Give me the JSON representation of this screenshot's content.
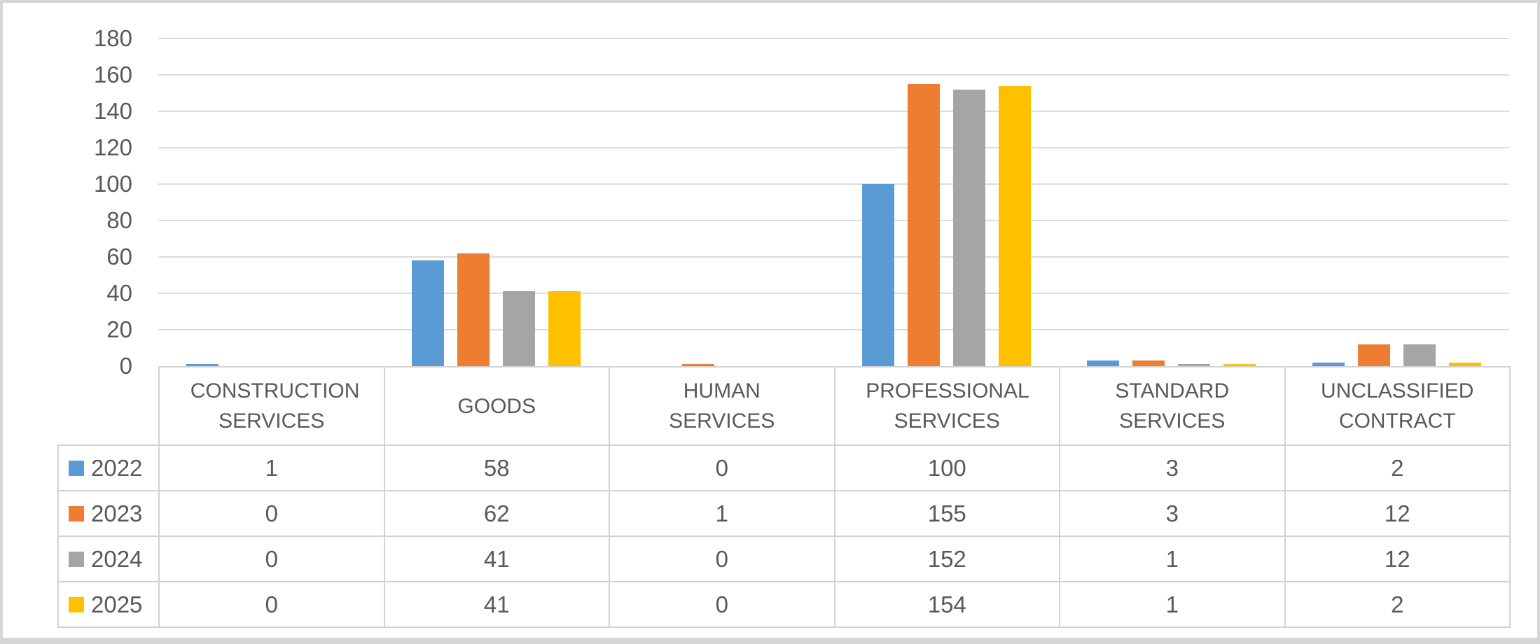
{
  "chart_data": {
    "type": "bar",
    "title": "",
    "xlabel": "",
    "ylabel": "",
    "categories": [
      "CONSTRUCTION SERVICES",
      "GOODS",
      "HUMAN SERVICES",
      "PROFESSIONAL SERVICES",
      "STANDARD SERVICES",
      "UNCLASSIFIED CONTRACT"
    ],
    "series": [
      {
        "name": "2022",
        "color": "#5B9BD5",
        "values": [
          1,
          58,
          0,
          100,
          3,
          2
        ]
      },
      {
        "name": "2023",
        "color": "#ED7D31",
        "values": [
          0,
          62,
          1,
          155,
          3,
          12
        ]
      },
      {
        "name": "2024",
        "color": "#A5A5A5",
        "values": [
          0,
          41,
          0,
          152,
          1,
          12
        ]
      },
      {
        "name": "2025",
        "color": "#FFC000",
        "values": [
          0,
          41,
          0,
          154,
          1,
          2
        ]
      }
    ],
    "ylim": [
      0,
      180
    ],
    "ytick_step": 20,
    "yticks": [
      "180",
      "160",
      "140",
      "120",
      "100",
      "80",
      "60",
      "40",
      "20",
      "0"
    ],
    "grid": true,
    "legend_position": "data-table-row-headers"
  },
  "colors": {
    "series_blue": "#5B9BD5",
    "series_orange": "#ED7D31",
    "series_gray": "#A5A5A5",
    "series_yellow": "#FFC000",
    "gridline": "#DCDCDC",
    "table_border": "#D2D2D2",
    "text": "#595959",
    "frame_border": "#D6D6D6",
    "background": "#FFFFFF"
  }
}
